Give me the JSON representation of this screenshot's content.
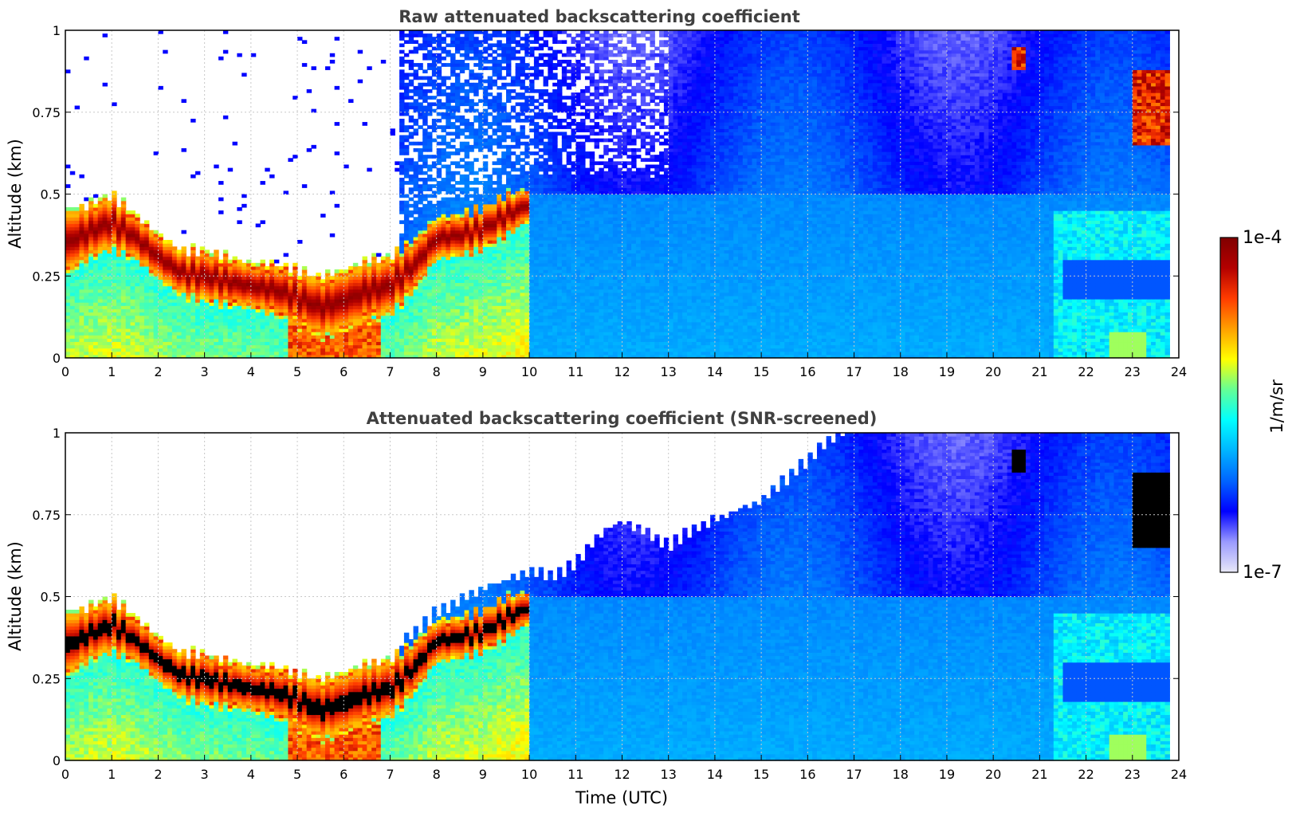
{
  "chart_data": [
    {
      "type": "heatmap",
      "title": "Raw attenuated backscattering coefficient",
      "xlabel": "",
      "ylabel": "Altitude (km)",
      "xlim": [
        0,
        24
      ],
      "ylim": [
        0,
        1
      ],
      "x_ticks": [
        "0",
        "1",
        "2",
        "3",
        "4",
        "5",
        "6",
        "7",
        "8",
        "9",
        "10",
        "11",
        "12",
        "13",
        "14",
        "15",
        "16",
        "17",
        "18",
        "19",
        "20",
        "21",
        "22",
        "23",
        "24"
      ],
      "y_ticks": [
        "0",
        "0.25",
        "0.5",
        "0.75",
        "1"
      ],
      "grid": true,
      "screened": false,
      "layer_top_km": [
        [
          0,
          0.45
        ],
        [
          0.5,
          0.47
        ],
        [
          1,
          0.5
        ],
        [
          1.5,
          0.44
        ],
        [
          2,
          0.38
        ],
        [
          2.5,
          0.33
        ],
        [
          3,
          0.33
        ],
        [
          3.5,
          0.31
        ],
        [
          4,
          0.29
        ],
        [
          4.5,
          0.29
        ],
        [
          5,
          0.27
        ],
        [
          5.5,
          0.25
        ],
        [
          6,
          0.27
        ],
        [
          6.5,
          0.3
        ],
        [
          7,
          0.31
        ],
        [
          7.5,
          0.36
        ],
        [
          8,
          0.43
        ],
        [
          8.5,
          0.44
        ],
        [
          9,
          0.46
        ],
        [
          9.5,
          0.5
        ],
        [
          10,
          0.52
        ]
      ],
      "layer_bottom_km": [
        [
          0,
          0.25
        ],
        [
          0.5,
          0.3
        ],
        [
          1,
          0.33
        ],
        [
          1.5,
          0.3
        ],
        [
          2,
          0.24
        ],
        [
          2.5,
          0.19
        ],
        [
          3,
          0.17
        ],
        [
          3.5,
          0.16
        ],
        [
          4,
          0.15
        ],
        [
          4.5,
          0.13
        ],
        [
          5,
          0.1
        ],
        [
          5.5,
          0.06
        ],
        [
          6,
          0.08
        ],
        [
          6.5,
          0.11
        ],
        [
          7,
          0.13
        ],
        [
          7.5,
          0.2
        ],
        [
          8,
          0.3
        ],
        [
          8.5,
          0.31
        ],
        [
          9,
          0.33
        ],
        [
          9.5,
          0.37
        ],
        [
          10,
          0.42
        ]
      ],
      "noise_region": "above ~0.5 km from 7 to 24 UTC (blue speckle), white above layer from 0 to 7 UTC",
      "features": [
        {
          "time_utc": [
            20.4,
            20.7
          ],
          "altitude_km": [
            0.88,
            0.95
          ],
          "level": "high"
        },
        {
          "time_utc": [
            23.0,
            23.8
          ],
          "altitude_km": [
            0.65,
            0.88
          ],
          "level": "high"
        },
        {
          "time_utc": [
            21.5,
            23.8
          ],
          "altitude_km": [
            0.18,
            0.3
          ],
          "level": "medium"
        }
      ]
    },
    {
      "type": "heatmap",
      "title": "Attenuated backscattering coefficient (SNR-screened)",
      "xlabel": "Time (UTC)",
      "ylabel": "Altitude (km)",
      "xlim": [
        0,
        24
      ],
      "ylim": [
        0,
        1
      ],
      "x_ticks": [
        "0",
        "1",
        "2",
        "3",
        "4",
        "5",
        "6",
        "7",
        "8",
        "9",
        "10",
        "11",
        "12",
        "13",
        "14",
        "15",
        "16",
        "17",
        "18",
        "19",
        "20",
        "21",
        "22",
        "23",
        "24"
      ],
      "y_ticks": [
        "0",
        "0.25",
        "0.5",
        "0.75",
        "1"
      ],
      "grid": true,
      "screened": true,
      "screen_top_km": [
        [
          0,
          0.52
        ],
        [
          1,
          0.54
        ],
        [
          2,
          0.42
        ],
        [
          3,
          0.36
        ],
        [
          4,
          0.34
        ],
        [
          5,
          0.33
        ],
        [
          6,
          0.32
        ],
        [
          7,
          0.36
        ],
        [
          8,
          0.48
        ],
        [
          9,
          0.55
        ],
        [
          10,
          0.6
        ],
        [
          10.5,
          0.58
        ],
        [
          11,
          0.62
        ],
        [
          11.5,
          0.7
        ],
        [
          12,
          0.74
        ],
        [
          12.5,
          0.7
        ],
        [
          13,
          0.66
        ],
        [
          13.5,
          0.7
        ],
        [
          14,
          0.73
        ],
        [
          15,
          0.78
        ],
        [
          15.5,
          0.84
        ],
        [
          16,
          0.9
        ],
        [
          16.5,
          0.96
        ],
        [
          17,
          1.0
        ],
        [
          24,
          1.0
        ]
      ]
    }
  ],
  "colorbar": {
    "label": "1/m/sr",
    "max_label": "1e-4",
    "min_label": "1e-7",
    "scale": "log",
    "colormap": "jet",
    "colors": [
      "#e8e8f8",
      "#9a9aff",
      "#0000ff",
      "#0064ff",
      "#00b4ff",
      "#00ffff",
      "#64ff96",
      "#ffff00",
      "#ffa000",
      "#ff3c00",
      "#b40000",
      "#800000"
    ]
  },
  "colors": {
    "title_gray": "#404040",
    "grid": "#c8c8c8",
    "saturation_black": "#000000"
  }
}
